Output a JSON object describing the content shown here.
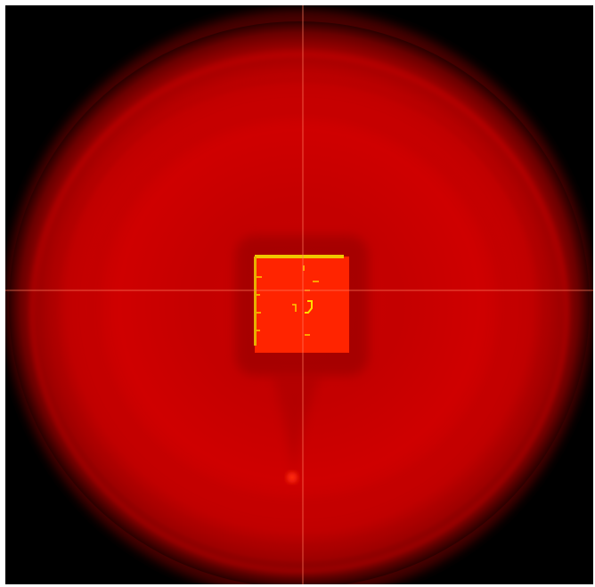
{
  "image": {
    "subject": "red-glowing-circular-field-with-central-square",
    "colors": {
      "background": "#000000",
      "frame": "#ffffff",
      "disk_core": "#d20000",
      "disk_mid": "#b80000",
      "disk_edge": "#7a0000",
      "square_fill": "#ff2a00",
      "square_border": "#e8c400",
      "crosshair": "#ff6a4a"
    }
  }
}
